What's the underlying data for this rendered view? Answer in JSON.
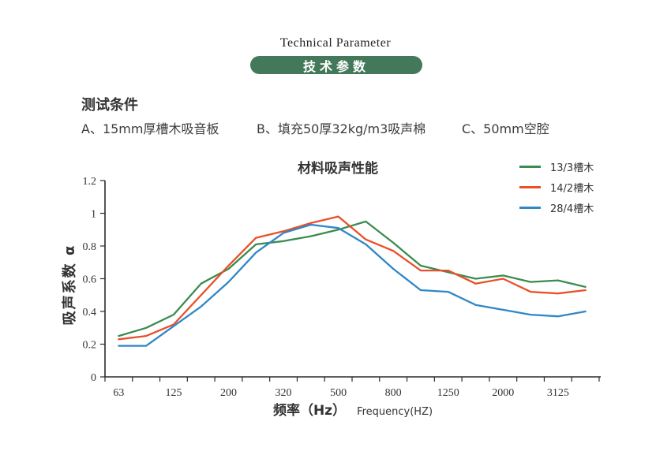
{
  "header": {
    "title_en": "Technical Parameter",
    "badge": "技术参数",
    "badge_color": "#44785a"
  },
  "conditions": {
    "heading": "测试条件",
    "items": [
      "A、15mm厚槽木吸音板",
      "B、填充50厚32kg/m3吸声棉",
      "C、50mm空腔"
    ]
  },
  "chart_data": {
    "type": "line",
    "title": "材料吸声性能",
    "ylabel": "吸声系数 α",
    "xlabel_cn": "频率（Hz）",
    "xlabel_en": "Frequency(HZ)",
    "ylim": [
      0,
      1.2
    ],
    "y_tick_labels": [
      "0",
      "0.2",
      "0.4",
      "0.6",
      "0.8",
      "1",
      "1.2"
    ],
    "x_tick_labels": [
      "63",
      "125",
      "200",
      "320",
      "500",
      "800",
      "1250",
      "2000",
      "3125"
    ],
    "n_points": 18,
    "grid": false,
    "legend_position": "top-right",
    "axis_color": "#2b2b2b",
    "series": [
      {
        "name": "13/3槽木",
        "color": "#3a8c50",
        "values": [
          0.25,
          0.3,
          0.38,
          0.57,
          0.66,
          0.81,
          0.83,
          0.86,
          0.9,
          0.95,
          0.82,
          0.68,
          0.64,
          0.6,
          0.62,
          0.58,
          0.59,
          0.55
        ]
      },
      {
        "name": "14/2槽木",
        "color": "#e8502a",
        "values": [
          0.23,
          0.25,
          0.32,
          0.5,
          0.68,
          0.85,
          0.89,
          0.94,
          0.98,
          0.84,
          0.77,
          0.65,
          0.65,
          0.57,
          0.6,
          0.52,
          0.51,
          0.53
        ]
      },
      {
        "name": "28/4槽木",
        "color": "#2f87c6",
        "values": [
          0.19,
          0.19,
          0.31,
          0.43,
          0.58,
          0.76,
          0.88,
          0.93,
          0.91,
          0.81,
          0.66,
          0.53,
          0.52,
          0.44,
          0.41,
          0.38,
          0.37,
          0.4
        ]
      }
    ]
  }
}
